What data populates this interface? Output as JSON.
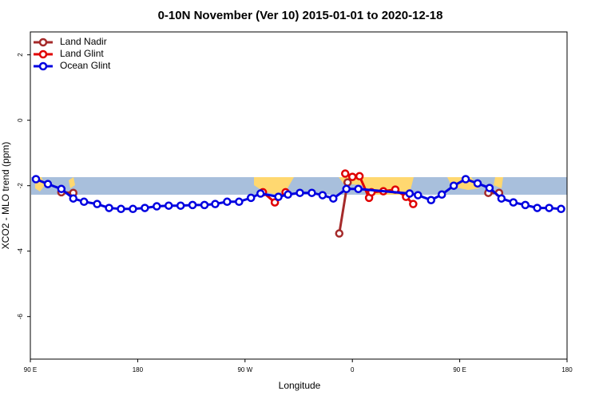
{
  "chart_data": {
    "type": "line",
    "title": "0-10N November (Ver 10)   2015-01-01 to 2020-12-18",
    "x_label": "Longitude",
    "y_label": "XCO2 - MLO trend (ppm)",
    "xlim": [
      90,
      540
    ],
    "xticks": [
      {
        "value": 90,
        "label": "90 E"
      },
      180,
      {
        "value": 270,
        "label": "90 W"
      },
      {
        "value": 360,
        "label": "0"
      },
      {
        "value": 450,
        "label": "90 E"
      },
      {
        "value": 540,
        "label": "180"
      }
    ],
    "ylim": [
      -7.3,
      2.7
    ],
    "yticks": [
      2,
      0,
      -2,
      -4,
      -6
    ],
    "legend": "top-left",
    "series": [
      {
        "name": "Land Nadir",
        "color": "#a52a2a",
        "x": [
          116,
          126,
          200,
          349,
          356,
          420,
          474,
          483
        ],
        "values": [
          -2.2,
          -2.22,
          null,
          -3.46,
          -1.9,
          null,
          -2.22,
          -2.22
        ]
      },
      {
        "name": "Land Glint",
        "color": "#e00000",
        "x": [
          285,
          295,
          304,
          330,
          354,
          360,
          366,
          374,
          376,
          386,
          396,
          405,
          411
        ],
        "values": [
          -2.2,
          -2.51,
          -2.2,
          null,
          -1.63,
          -1.73,
          -1.71,
          -2.37,
          -2.2,
          -2.17,
          -2.12,
          -2.34,
          -2.56
        ]
      },
      {
        "name": "Ocean Glint",
        "color": "#0000e0",
        "x": [
          94.7,
          104.7,
          116,
          126,
          135,
          146,
          156,
          166,
          176,
          186,
          196,
          206,
          216,
          226,
          236,
          245,
          255,
          265,
          275,
          283,
          298,
          306,
          316,
          326,
          335,
          344,
          355,
          365,
          408,
          415,
          426,
          435,
          445,
          455,
          465,
          475,
          485,
          495,
          505,
          515,
          525,
          535
        ],
        "values": [
          -1.8,
          -1.95,
          -2.1,
          -2.39,
          -2.49,
          -2.56,
          -2.68,
          -2.71,
          -2.71,
          -2.68,
          -2.63,
          -2.61,
          -2.61,
          -2.59,
          -2.59,
          -2.56,
          -2.49,
          -2.49,
          -2.37,
          -2.24,
          -2.34,
          -2.27,
          -2.22,
          -2.22,
          -2.29,
          -2.39,
          -2.1,
          -2.1,
          -2.24,
          -2.29,
          -2.44,
          -2.27,
          -2.0,
          -1.8,
          -1.93,
          -2.07,
          -2.39,
          -2.51,
          -2.59,
          -2.68,
          -2.68,
          -2.71
        ]
      }
    ]
  }
}
